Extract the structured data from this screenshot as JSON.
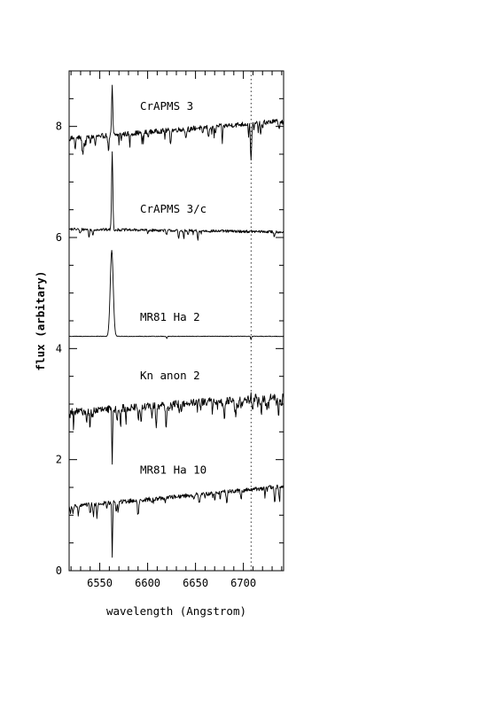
{
  "chart_data": {
    "type": "line",
    "title": "",
    "xlabel": "wavelength (Angstrom)",
    "ylabel": "flux (arbitary)",
    "xlim": [
      6518,
      6742
    ],
    "ylim": [
      0,
      9.0
    ],
    "xticks": [
      6550,
      6600,
      6650,
      6700
    ],
    "yticks": [
      0,
      2,
      4,
      6,
      8
    ],
    "grid": false,
    "legend": "none",
    "reference_line": {
      "x": 6708,
      "style": "dotted"
    },
    "series": [
      {
        "name": "CrAPMS 3",
        "label_pos": [
          6592,
          8.3
        ],
        "continuum": [
          [
            6518,
            7.78
          ],
          [
            6742,
            8.1
          ]
        ],
        "noise": 0.045,
        "absorption_density": 0.55,
        "features": [
          {
            "x": 6563,
            "depth": 0.9,
            "width": 0.8
          },
          {
            "x": 6708,
            "depth": -0.7,
            "width": 0.8
          },
          {
            "x": 6594,
            "depth": -0.18,
            "width": 0.6
          },
          {
            "x": 6640,
            "depth": -0.15,
            "width": 0.6
          },
          {
            "x": 6678,
            "depth": -0.2,
            "width": 0.6
          },
          {
            "x": 6718,
            "depth": -0.25,
            "width": 0.6
          }
        ]
      },
      {
        "name": "CrAPMS 3/c",
        "label_pos": [
          6592,
          6.45
        ],
        "continuum": [
          [
            6518,
            6.15
          ],
          [
            6742,
            6.1
          ]
        ],
        "noise": 0.025,
        "absorption_density": 0.2,
        "features": [
          {
            "x": 6563,
            "depth": 1.4,
            "width": 0.9
          }
        ]
      },
      {
        "name": "MR81 Ha 2",
        "label_pos": [
          6592,
          4.5
        ],
        "continuum": [
          [
            6518,
            4.22
          ],
          [
            6742,
            4.22
          ]
        ],
        "noise": 0.005,
        "absorption_density": 0.0,
        "features": [
          {
            "x": 6562.5,
            "depth": 1.55,
            "width": 2.2
          },
          {
            "x": 6708,
            "depth": -0.06,
            "width": 0.6
          },
          {
            "x": 6620,
            "depth": -0.04,
            "width": 0.6
          }
        ]
      },
      {
        "name": "Kn anon 2",
        "label_pos": [
          6592,
          3.45
        ],
        "continuum": [
          [
            6518,
            2.85
          ],
          [
            6742,
            3.15
          ]
        ],
        "noise": 0.07,
        "absorption_density": 0.9,
        "features": [
          {
            "x": 6563,
            "depth": -1.0,
            "width": 0.6
          },
          {
            "x": 6708,
            "depth": 0.12,
            "width": 0.8
          }
        ]
      },
      {
        "name": "MR81 Ha 10",
        "label_pos": [
          6592,
          1.75
        ],
        "continuum": [
          [
            6518,
            1.15
          ],
          [
            6742,
            1.52
          ]
        ],
        "noise": 0.04,
        "absorption_density": 0.45,
        "features": [
          {
            "x": 6563,
            "depth": -0.95,
            "width": 0.6
          },
          {
            "x": 6547,
            "depth": -0.25,
            "width": 0.6
          },
          {
            "x": 6540,
            "depth": -0.18,
            "width": 0.6
          }
        ]
      }
    ]
  }
}
